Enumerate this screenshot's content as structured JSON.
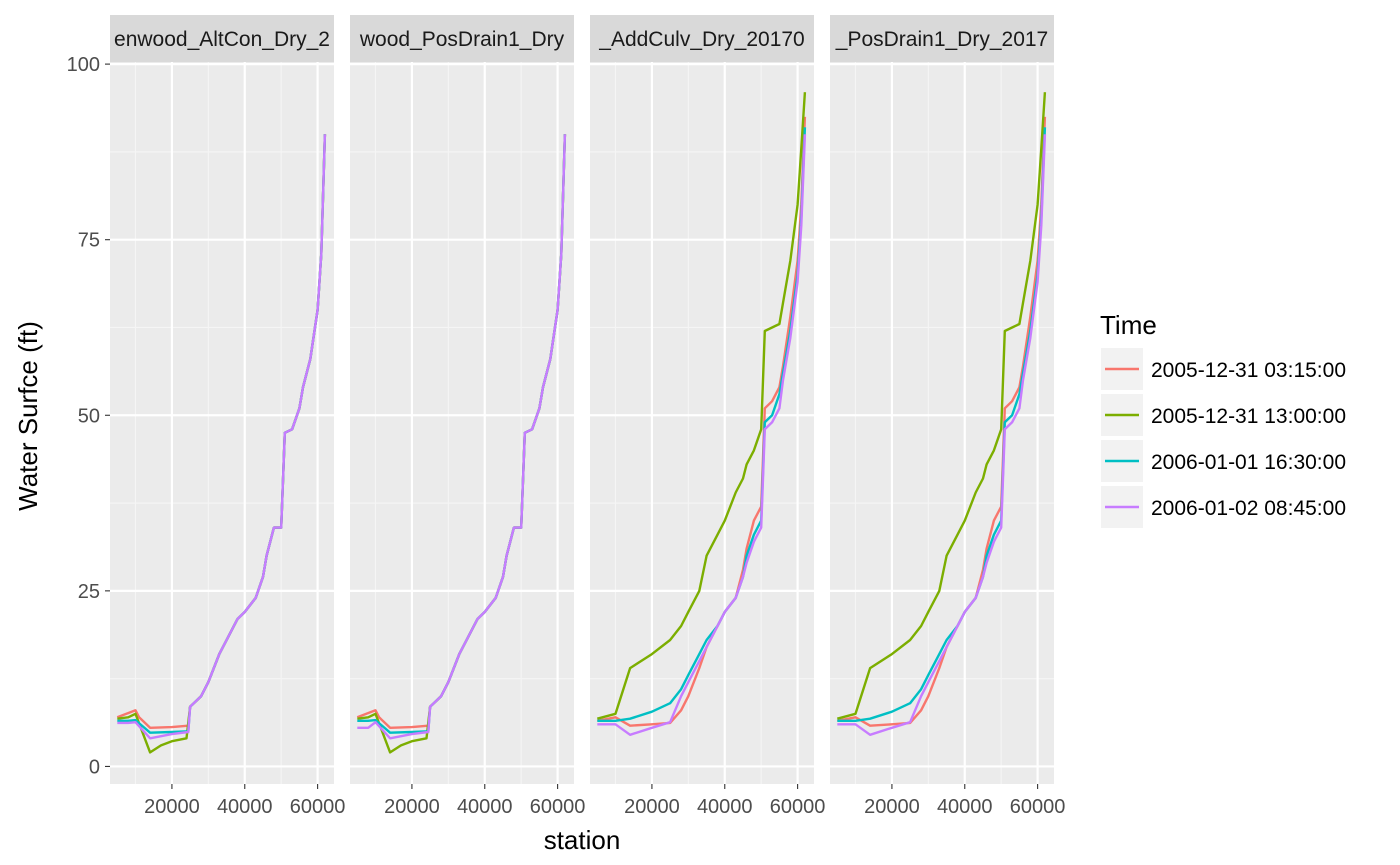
{
  "chart_data": {
    "type": "line",
    "xlabel": "station",
    "ylabel": "Water Surfce (ft)",
    "xlim": [
      3000,
      64500
    ],
    "ylim": [
      -2.5,
      100.3
    ],
    "x_ticks": [
      20000,
      40000,
      60000
    ],
    "x_tick_labels": [
      "20000",
      "40000",
      "60000"
    ],
    "y_ticks": [
      0,
      25,
      50,
      75,
      100
    ],
    "y_tick_labels": [
      "0",
      "25",
      "50",
      "75",
      "100"
    ],
    "grid": true,
    "legend": {
      "title": "Time",
      "position": "right",
      "entries": [
        {
          "label": "2005-12-31 03:15:00",
          "color": "#F8766D"
        },
        {
          "label": "2005-12-31 13:00:00",
          "color": "#7CAE00"
        },
        {
          "label": "2006-01-01 16:30:00",
          "color": "#00BFC4"
        },
        {
          "label": "2006-01-02 08:45:00",
          "color": "#C77CFF"
        }
      ]
    },
    "panels": [
      {
        "title": "enwood_AltCon_Dry_2",
        "series": [
          {
            "name": "2005-12-31 03:15:00",
            "color": "#F8766D",
            "x": [
              5000,
              7500,
              10000,
              11000,
              14000,
              20000,
              24500,
              25000,
              28000,
              30000,
              33000,
              35000,
              38000,
              40000,
              43000,
              45000,
              46000,
              48000,
              50000,
              51000,
              53000,
              55000,
              56000,
              58000,
              60000,
              61000,
              62000
            ],
            "y": [
              7,
              7.5,
              8,
              7,
              5.5,
              5.6,
              5.8,
              8.5,
              10,
              12,
              16,
              18,
              21,
              22,
              24,
              27,
              30,
              34,
              34,
              47.5,
              48,
              51,
              54,
              58,
              65,
              73,
              90
            ]
          },
          {
            "name": "2005-12-31 13:00:00",
            "color": "#7CAE00",
            "x": [
              5000,
              8000,
              10000,
              14000,
              17000,
              20000,
              24000,
              25000,
              28000,
              30000,
              33000,
              35000,
              38000,
              40000,
              43000,
              45000,
              46000,
              48000,
              50000,
              51000,
              53000,
              55000,
              56000,
              58000,
              60000,
              61000,
              62000
            ],
            "y": [
              6.8,
              7,
              7.5,
              2,
              3,
              3.6,
              4,
              8.5,
              10,
              12,
              16,
              18,
              21,
              22,
              24,
              27,
              30,
              34,
              34,
              47.5,
              48,
              51,
              54,
              58,
              65,
              73,
              90
            ]
          },
          {
            "name": "2006-01-01 16:30:00",
            "color": "#00BFC4",
            "x": [
              5000,
              8000,
              10000,
              14000,
              20000,
              24500,
              25000,
              28000,
              30000,
              33000,
              35000,
              38000,
              40000,
              43000,
              45000,
              46000,
              48000,
              50000,
              51000,
              53000,
              55000,
              56000,
              58000,
              60000,
              61000,
              62000
            ],
            "y": [
              6.5,
              6.5,
              6.6,
              4.8,
              4.9,
              5,
              8.5,
              10,
              12,
              16,
              18,
              21,
              22,
              24,
              27,
              30,
              34,
              34,
              47.5,
              48,
              51,
              54,
              58,
              65,
              73,
              90
            ]
          },
          {
            "name": "2006-01-02 08:45:00",
            "color": "#C77CFF",
            "x": [
              5000,
              8000,
              10000,
              14000,
              20000,
              24500,
              25000,
              28000,
              30000,
              33000,
              35000,
              38000,
              40000,
              43000,
              45000,
              46000,
              48000,
              50000,
              51000,
              53000,
              55000,
              56000,
              58000,
              60000,
              61000,
              62000
            ],
            "y": [
              6.2,
              6.2,
              6.3,
              4,
              4.6,
              4.9,
              8.5,
              10,
              12,
              16,
              18,
              21,
              22,
              24,
              27,
              30,
              34,
              34,
              47.5,
              48,
              51,
              54,
              58,
              65,
              73,
              90
            ]
          }
        ]
      },
      {
        "title": "wood_PosDrain1_Dry",
        "series": [
          {
            "name": "2005-12-31 03:15:00",
            "color": "#F8766D",
            "x": [
              5000,
              7500,
              10000,
              11000,
              14000,
              20000,
              24500,
              25000,
              28000,
              30000,
              33000,
              35000,
              38000,
              40000,
              43000,
              45000,
              46000,
              48000,
              50000,
              51000,
              53000,
              55000,
              56000,
              58000,
              60000,
              61000,
              62000
            ],
            "y": [
              7,
              7.5,
              8,
              7,
              5.5,
              5.6,
              5.8,
              8.5,
              10,
              12,
              16,
              18,
              21,
              22,
              24,
              27,
              30,
              34,
              34,
              47.5,
              48,
              51,
              54,
              58,
              65,
              73,
              90
            ]
          },
          {
            "name": "2005-12-31 13:00:00",
            "color": "#7CAE00",
            "x": [
              5000,
              8000,
              10000,
              14000,
              17000,
              20000,
              24000,
              25000,
              28000,
              30000,
              33000,
              35000,
              38000,
              40000,
              43000,
              45000,
              46000,
              48000,
              50000,
              51000,
              53000,
              55000,
              56000,
              58000,
              60000,
              61000,
              62000
            ],
            "y": [
              6.8,
              7,
              7.5,
              2,
              3,
              3.6,
              4,
              8.5,
              10,
              12,
              16,
              18,
              21,
              22,
              24,
              27,
              30,
              34,
              34,
              47.5,
              48,
              51,
              54,
              58,
              65,
              73,
              90
            ]
          },
          {
            "name": "2006-01-01 16:30:00",
            "color": "#00BFC4",
            "x": [
              5000,
              8000,
              10000,
              14000,
              20000,
              24500,
              25000,
              28000,
              30000,
              33000,
              35000,
              38000,
              40000,
              43000,
              45000,
              46000,
              48000,
              50000,
              51000,
              53000,
              55000,
              56000,
              58000,
              60000,
              61000,
              62000
            ],
            "y": [
              6.5,
              6.5,
              6.6,
              4.8,
              4.9,
              5,
              8.5,
              10,
              12,
              16,
              18,
              21,
              22,
              24,
              27,
              30,
              34,
              34,
              47.5,
              48,
              51,
              54,
              58,
              65,
              73,
              90
            ]
          },
          {
            "name": "2006-01-02 08:45:00",
            "color": "#C77CFF",
            "x": [
              5000,
              8000,
              10000,
              14000,
              20000,
              24500,
              25000,
              28000,
              30000,
              33000,
              35000,
              38000,
              40000,
              43000,
              45000,
              46000,
              48000,
              50000,
              51000,
              53000,
              55000,
              56000,
              58000,
              60000,
              61000,
              62000
            ],
            "y": [
              5.5,
              5.5,
              6.3,
              4,
              4.6,
              4.9,
              8.5,
              10,
              12,
              16,
              18,
              21,
              22,
              24,
              27,
              30,
              34,
              34,
              47.5,
              48,
              51,
              54,
              58,
              65,
              73,
              90
            ]
          }
        ]
      },
      {
        "title": "_AddCulv_Dry_20170",
        "series": [
          {
            "name": "2005-12-31 03:15:00",
            "color": "#F8766D",
            "x": [
              5000,
              10000,
              14000,
              20000,
              25000,
              28000,
              30000,
              33000,
              35000,
              38000,
              40000,
              43000,
              45000,
              46000,
              48000,
              50000,
              51000,
              53000,
              55000,
              56000,
              58000,
              60000,
              61000,
              62000
            ],
            "y": [
              6.5,
              7,
              5.8,
              6,
              6.2,
              8,
              10,
              14,
              17,
              20,
              22,
              24,
              28,
              31,
              35,
              37,
              51,
              52,
              54,
              57,
              64,
              72,
              80,
              92.5
            ]
          },
          {
            "name": "2005-12-31 13:00:00",
            "color": "#7CAE00",
            "x": [
              5000,
              10000,
              14000,
              20000,
              25000,
              28000,
              30000,
              33000,
              35000,
              38000,
              40000,
              43000,
              45000,
              46000,
              48000,
              50000,
              51000,
              53000,
              55000,
              56000,
              58000,
              60000,
              61000,
              62000
            ],
            "y": [
              6.8,
              7.5,
              14,
              16,
              18,
              20,
              22,
              25,
              30,
              33,
              35,
              39,
              41,
              43,
              45,
              48,
              62,
              62.5,
              63,
              66,
              72,
              80,
              88,
              96
            ]
          },
          {
            "name": "2006-01-01 16:30:00",
            "color": "#00BFC4",
            "x": [
              5000,
              10000,
              14000,
              20000,
              25000,
              28000,
              30000,
              33000,
              35000,
              38000,
              40000,
              43000,
              45000,
              46000,
              48000,
              50000,
              51000,
              53000,
              55000,
              56000,
              58000,
              60000,
              61000,
              62000
            ],
            "y": [
              6.5,
              6.5,
              6.8,
              7.8,
              9,
              11,
              13,
              16,
              18,
              20,
              22,
              24,
              27,
              30,
              33,
              35,
              49,
              50,
              53,
              56,
              62,
              70,
              78,
              91
            ]
          },
          {
            "name": "2006-01-02 08:45:00",
            "color": "#C77CFF",
            "x": [
              5000,
              10000,
              14000,
              20000,
              25000,
              28000,
              30000,
              33000,
              35000,
              38000,
              40000,
              43000,
              45000,
              46000,
              48000,
              50000,
              51000,
              53000,
              55000,
              56000,
              58000,
              60000,
              61000,
              62000
            ],
            "y": [
              6,
              6,
              4.5,
              5.5,
              6.3,
              10,
              12,
              15,
              17,
              20,
              22,
              24,
              27,
              29,
              32,
              34,
              48,
              49,
              51,
              55,
              61,
              69,
              77,
              90
            ]
          }
        ]
      },
      {
        "title": "_PosDrain1_Dry_2017",
        "series": [
          {
            "name": "2005-12-31 03:15:00",
            "color": "#F8766D",
            "x": [
              5000,
              10000,
              14000,
              20000,
              25000,
              28000,
              30000,
              33000,
              35000,
              38000,
              40000,
              43000,
              45000,
              46000,
              48000,
              50000,
              51000,
              53000,
              55000,
              56000,
              58000,
              60000,
              61000,
              62000
            ],
            "y": [
              6.5,
              7,
              5.8,
              6,
              6.2,
              8,
              10,
              14,
              17,
              20,
              22,
              24,
              28,
              31,
              35,
              37,
              51,
              52,
              54,
              57,
              64,
              72,
              80,
              92.5
            ]
          },
          {
            "name": "2005-12-31 13:00:00",
            "color": "#7CAE00",
            "x": [
              5000,
              10000,
              14000,
              20000,
              25000,
              28000,
              30000,
              33000,
              35000,
              38000,
              40000,
              43000,
              45000,
              46000,
              48000,
              50000,
              51000,
              53000,
              55000,
              56000,
              58000,
              60000,
              61000,
              62000
            ],
            "y": [
              6.8,
              7.5,
              14,
              16,
              18,
              20,
              22,
              25,
              30,
              33,
              35,
              39,
              41,
              43,
              45,
              48,
              62,
              62.5,
              63,
              66,
              72,
              80,
              88,
              96
            ]
          },
          {
            "name": "2006-01-01 16:30:00",
            "color": "#00BFC4",
            "x": [
              5000,
              10000,
              14000,
              20000,
              25000,
              28000,
              30000,
              33000,
              35000,
              38000,
              40000,
              43000,
              45000,
              46000,
              48000,
              50000,
              51000,
              53000,
              55000,
              56000,
              58000,
              60000,
              61000,
              62000
            ],
            "y": [
              6.5,
              6.5,
              6.8,
              7.8,
              9,
              11,
              13,
              16,
              18,
              20,
              22,
              24,
              27,
              30,
              33,
              35,
              49,
              50,
              53,
              56,
              62,
              70,
              78,
              91
            ]
          },
          {
            "name": "2006-01-02 08:45:00",
            "color": "#C77CFF",
            "x": [
              5000,
              10000,
              14000,
              20000,
              25000,
              28000,
              30000,
              33000,
              35000,
              38000,
              40000,
              43000,
              45000,
              46000,
              48000,
              50000,
              51000,
              53000,
              55000,
              56000,
              58000,
              60000,
              61000,
              62000
            ],
            "y": [
              6,
              6,
              4.5,
              5.5,
              6.3,
              10,
              12,
              15,
              17,
              20,
              22,
              24,
              27,
              29,
              32,
              34,
              48,
              49,
              51,
              55,
              61,
              69,
              77,
              90
            ]
          }
        ]
      }
    ]
  }
}
